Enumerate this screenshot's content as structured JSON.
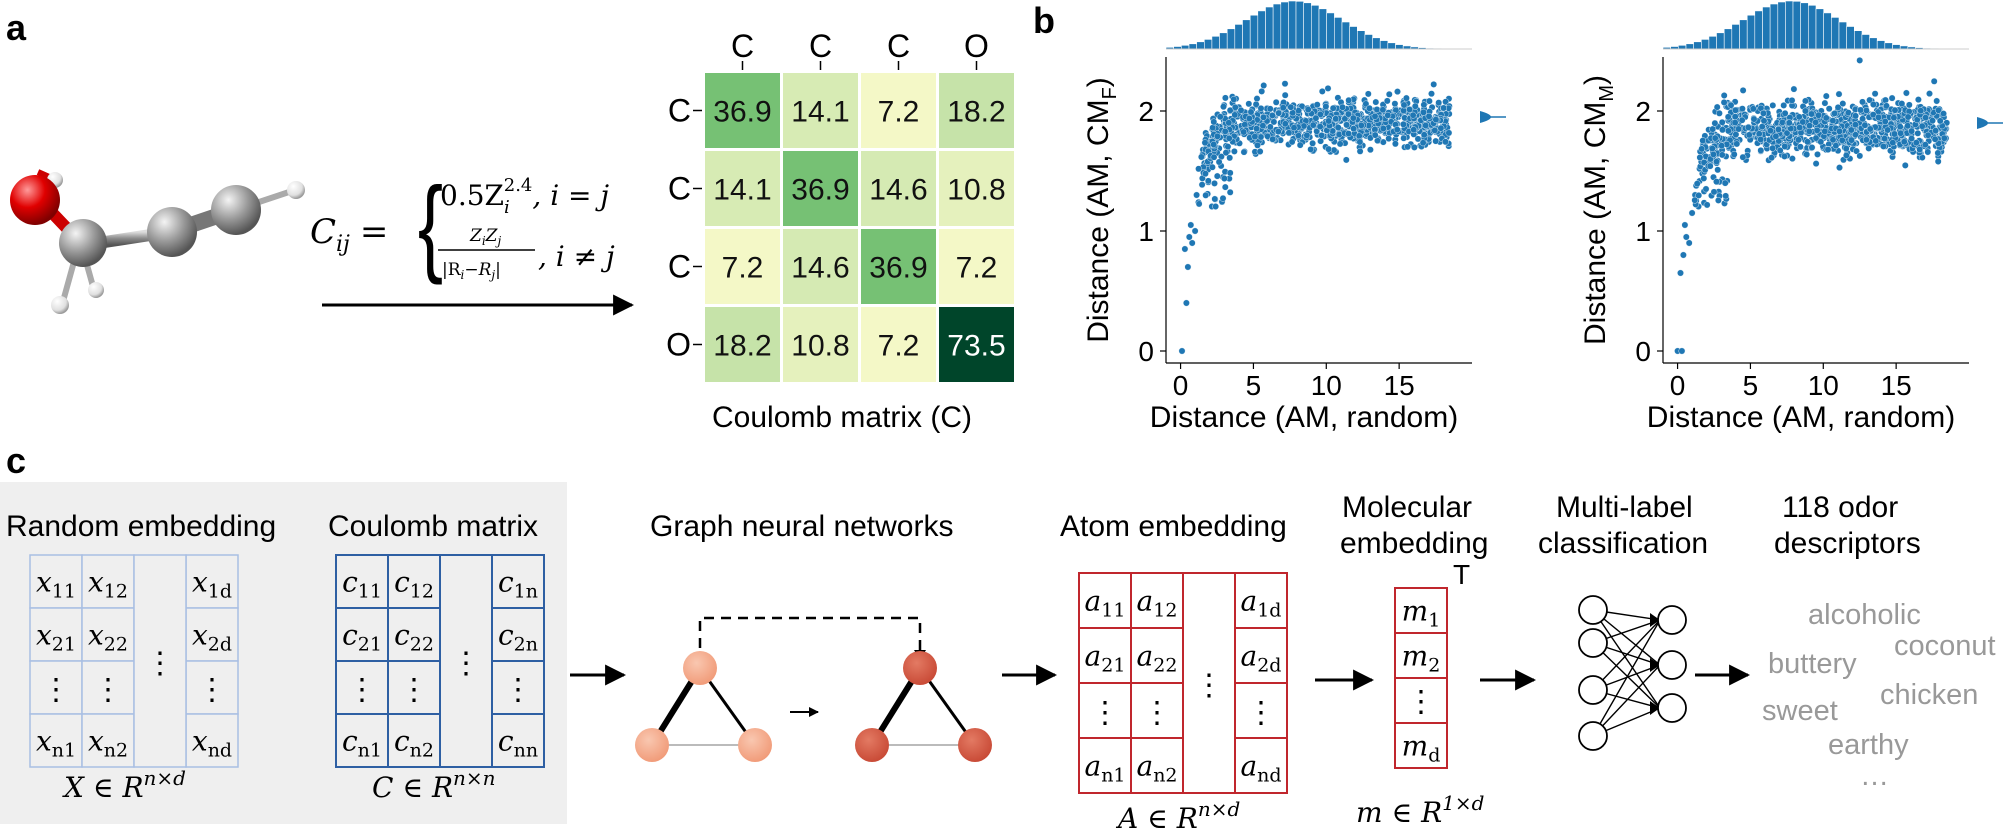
{
  "panel_labels": {
    "a": "a",
    "b": "b",
    "c": "c"
  },
  "formula": {
    "lhs": "C",
    "lhs_sub": "ij",
    "eq": "=",
    "case1": "0.5Z",
    "case1_sub": "i",
    "case1_sup": "2.4",
    "case1_cond": ", i = j",
    "case2_num": "Z",
    "case2_num_sub1": "i",
    "case2_num_mid": "Z",
    "case2_num_sub2": "j",
    "case2_den": "|R",
    "case2_den_sub1": "i",
    "case2_den_mid": "−R",
    "case2_den_sub2": "j",
    "case2_den_end": "|",
    "case2_cond": ", i ≠ j"
  },
  "coulomb_matrix": {
    "col_labels": [
      "C",
      "C",
      "C",
      "O"
    ],
    "row_labels": [
      "C",
      "C",
      "C",
      "O"
    ],
    "values": [
      [
        "36.9",
        "14.1",
        "7.2",
        "18.2"
      ],
      [
        "14.1",
        "36.9",
        "14.6",
        "10.8"
      ],
      [
        "7.2",
        "14.6",
        "36.9",
        "7.2"
      ],
      [
        "18.2",
        "10.8",
        "7.2",
        "73.5"
      ]
    ],
    "caption": "Coulomb matrix (C)"
  },
  "colors": {
    "molecule_gray": "#8a8a8a",
    "oxygen_red": "#e00000",
    "scatter_blue": "#1f77b4",
    "random_blue": "#a9bfe3",
    "coulomb_blue": "#2e5fa3",
    "atom_red": "#c0262d",
    "light_node": "#f5ad8f",
    "dark_node": "#d9604a",
    "gray_box": "#efefef",
    "odor_gray": "#999999",
    "heatmap_low": "#f5f8c8",
    "heatmap_mid": "#76c174",
    "heatmap_high": "#00452a"
  },
  "chart_data": [
    {
      "type": "scatter",
      "xlabel": "Distance (AM, random)",
      "ylabel": "Distance (AM, CM",
      "ylabel_sub": "F",
      "ylabel_end": ")",
      "xlim": [
        -1,
        20
      ],
      "ylim": [
        -0.1,
        2.45
      ],
      "xticks": [
        "0",
        "5",
        "10",
        "15"
      ],
      "yticks": [
        "0",
        "1",
        "2"
      ],
      "low_points": [
        [
          0.1,
          0.0
        ],
        [
          0.4,
          0.4
        ],
        [
          0.5,
          0.7
        ],
        [
          0.3,
          0.85
        ],
        [
          0.6,
          0.95
        ],
        [
          0.8,
          0.9
        ],
        [
          1.0,
          1.0
        ],
        [
          0.7,
          1.05
        ],
        [
          1.1,
          1.3
        ]
      ],
      "band": {
        "x": [
          1.5,
          18.5
        ],
        "y_center": 1.9,
        "y_spread": 0.18
      },
      "n_points": 900
    },
    {
      "type": "scatter",
      "xlabel": "Distance (AM, random)",
      "ylabel": "Distance (AM, CM",
      "ylabel_sub": "M",
      "ylabel_end": ")",
      "xlim": [
        -1,
        20
      ],
      "ylim": [
        -0.1,
        2.45
      ],
      "xticks": [
        "0",
        "5",
        "10",
        "15"
      ],
      "yticks": [
        "0",
        "1",
        "2"
      ],
      "low_points": [
        [
          0.0,
          0.0
        ],
        [
          0.3,
          0.0
        ],
        [
          0.2,
          0.65
        ],
        [
          0.4,
          0.8
        ],
        [
          0.6,
          0.95
        ],
        [
          0.8,
          0.9
        ],
        [
          0.5,
          1.05
        ],
        [
          1.0,
          1.15
        ],
        [
          1.2,
          1.3
        ]
      ],
      "band": {
        "x": [
          1.5,
          18.5
        ],
        "y_center": 1.85,
        "y_spread": 0.2
      },
      "n_points": 900
    }
  ],
  "pipeline": {
    "random_embedding": {
      "title": "Random embedding",
      "cells": [
        [
          "x",
          "11"
        ],
        [
          "x",
          "12"
        ],
        [
          "x",
          "1d"
        ],
        [
          "x",
          "21"
        ],
        [
          "x",
          "22"
        ],
        [
          "x",
          "2d"
        ],
        [
          "x",
          "n1"
        ],
        [
          "x",
          "n2"
        ],
        [
          "x",
          "nd"
        ]
      ],
      "dots_v": "⋮",
      "dots_h": "⋮",
      "formula": "X ∈ R",
      "formula_sup": "n×d"
    },
    "coulomb_embedding": {
      "title": "Coulomb matrix",
      "cells": [
        [
          "c",
          "11"
        ],
        [
          "c",
          "12"
        ],
        [
          "c",
          "1n"
        ],
        [
          "c",
          "21"
        ],
        [
          "c",
          "22"
        ],
        [
          "c",
          "2n"
        ],
        [
          "c",
          "n1"
        ],
        [
          "c",
          "n2"
        ],
        [
          "c",
          "nn"
        ]
      ],
      "formula": "C ∈ R",
      "formula_sup": "n×n"
    },
    "gnn": {
      "title": "Graph neural networks"
    },
    "atom_embedding": {
      "title": "Atom embedding",
      "cells": [
        [
          "a",
          "11"
        ],
        [
          "a",
          "12"
        ],
        [
          "a",
          "1d"
        ],
        [
          "a",
          "21"
        ],
        [
          "a",
          "22"
        ],
        [
          "a",
          "2d"
        ],
        [
          "a",
          "n1"
        ],
        [
          "a",
          "n2"
        ],
        [
          "a",
          "nd"
        ]
      ],
      "formula": "A ∈ R",
      "formula_sup": "n×d"
    },
    "molecular_embedding": {
      "title_line1": "Molecular",
      "title_line2": "embedding",
      "transpose": "T",
      "cells": [
        [
          "m",
          "1"
        ],
        [
          "m",
          "2"
        ],
        [
          "m",
          "d"
        ]
      ],
      "formula": "m ∈ R",
      "formula_sup": "1×d"
    },
    "classification": {
      "title_line1": "Multi-label",
      "title_line2": "classification"
    },
    "odor": {
      "title_line1": "118 odor",
      "title_line2": "descriptors",
      "words": [
        "alcoholic",
        "coconut",
        "buttery",
        "chicken",
        "sweet",
        "earthy",
        "…"
      ]
    }
  }
}
